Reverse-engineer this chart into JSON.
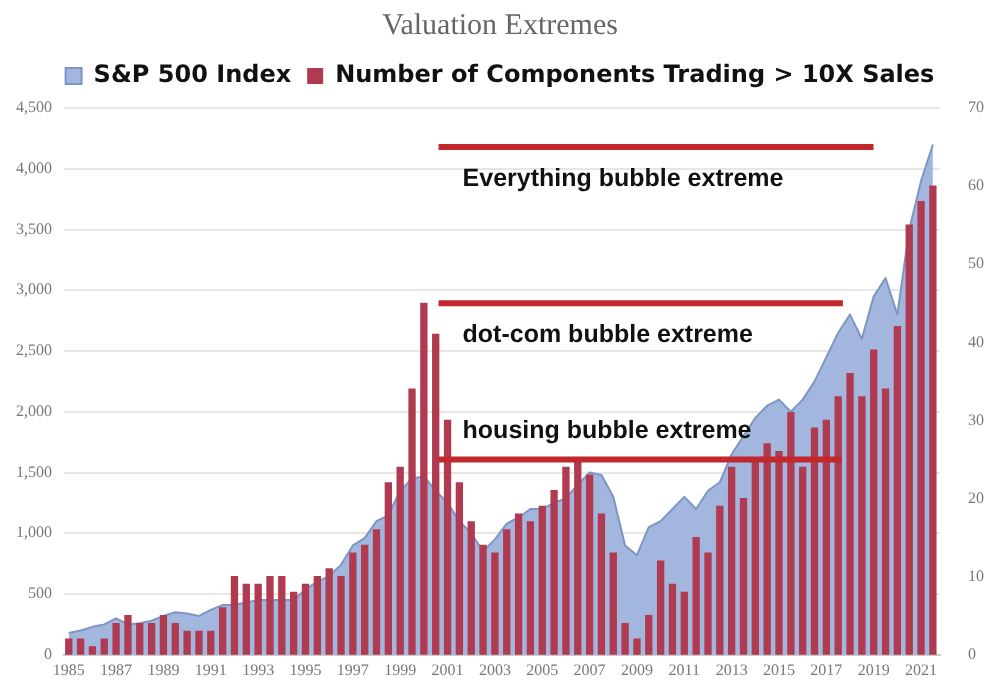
{
  "chart_data": {
    "type": "bar",
    "title": "Valuation Extremes",
    "x": [
      1985,
      1985.5,
      1986,
      1986.5,
      1987,
      1987.5,
      1988,
      1988.5,
      1989,
      1989.5,
      1990,
      1990.5,
      1991,
      1991.5,
      1992,
      1992.5,
      1993,
      1993.5,
      1994,
      1994.5,
      1995,
      1995.5,
      1996,
      1996.5,
      1997,
      1997.5,
      1998,
      1998.5,
      1999,
      1999.5,
      2000,
      2000.5,
      2001,
      2001.5,
      2002,
      2002.5,
      2003,
      2003.5,
      2004,
      2004.5,
      2005,
      2005.5,
      2006,
      2006.5,
      2007,
      2007.5,
      2008,
      2008.5,
      2009,
      2009.5,
      2010,
      2010.5,
      2011,
      2011.5,
      2012,
      2012.5,
      2013,
      2013.5,
      2014,
      2014.5,
      2015,
      2015.5,
      2016,
      2016.5,
      2017,
      2017.5,
      2018,
      2018.5,
      2019,
      2019.5,
      2020,
      2020.5,
      2021,
      2021.5
    ],
    "series": [
      {
        "name": "S&P 500 Index",
        "type": "area",
        "color": "#a3b6de",
        "values": [
          180,
          200,
          230,
          250,
          300,
          250,
          260,
          280,
          320,
          350,
          340,
          320,
          370,
          410,
          410,
          430,
          450,
          450,
          450,
          450,
          540,
          600,
          650,
          740,
          900,
          960,
          1100,
          1150,
          1350,
          1450,
          1470,
          1350,
          1250,
          1100,
          1000,
          850,
          950,
          1080,
          1130,
          1200,
          1200,
          1250,
          1290,
          1400,
          1500,
          1480,
          1300,
          900,
          820,
          1050,
          1100,
          1200,
          1300,
          1200,
          1350,
          1420,
          1650,
          1800,
          1950,
          2050,
          2100,
          2000,
          2100,
          2250,
          2450,
          2650,
          2800,
          2600,
          2950,
          3100,
          2800,
          3500,
          3900,
          4200
        ]
      },
      {
        "name": "Number of Components Trading > 10X Sales",
        "axis": "y2",
        "color": "#b03a50",
        "values": [
          2,
          2,
          1,
          2,
          4,
          5,
          4,
          4,
          5,
          4,
          3,
          3,
          3,
          6,
          10,
          9,
          9,
          10,
          10,
          8,
          9,
          10,
          11,
          10,
          13,
          14,
          16,
          22,
          24,
          34,
          45,
          41,
          30,
          22,
          17,
          14,
          13,
          16,
          18,
          17,
          19,
          21,
          24,
          25,
          23,
          18,
          13,
          4,
          2,
          5,
          12,
          9,
          8,
          15,
          13,
          19,
          24,
          20,
          25,
          27,
          26,
          31,
          24,
          29,
          30,
          33,
          36,
          33,
          39,
          34,
          42,
          55,
          58,
          60
        ]
      }
    ],
    "xlim": [
      1984.8,
      2021.8
    ],
    "xticks": [
      1985,
      1987,
      1989,
      1991,
      1993,
      1995,
      1997,
      1999,
      2001,
      2003,
      2005,
      2007,
      2009,
      2011,
      2013,
      2015,
      2017,
      2019,
      2021
    ],
    "ylim": [
      0,
      4500
    ],
    "yticks": [
      {
        "value": 0,
        "label": "0"
      },
      {
        "value": 500,
        "label": "500"
      },
      {
        "value": 1000,
        "label": "1,000"
      },
      {
        "value": 1500,
        "label": "1,500"
      },
      {
        "value": 2000,
        "label": "2,000"
      },
      {
        "value": 2500,
        "label": "2,500"
      },
      {
        "value": 3000,
        "label": "3,000"
      },
      {
        "value": 3500,
        "label": "3,500"
      },
      {
        "value": 4000,
        "label": "4,000"
      },
      {
        "value": 4500,
        "label": "4,500"
      }
    ],
    "y2lim": [
      0,
      70
    ],
    "y2ticks": [
      0,
      10,
      20,
      30,
      40,
      50,
      60,
      70
    ],
    "grid": "y",
    "legend": "top",
    "ref_lines": [
      {
        "axis": "y2",
        "value": 65,
        "label": "Everything bubble extreme",
        "color": "#c0282d"
      },
      {
        "axis": "y2",
        "value": 45,
        "label": "dot-com bubble extreme",
        "color": "#c0282d"
      },
      {
        "axis": "y2",
        "value": 25,
        "label": "housing bubble extreme",
        "color": "#c0282d"
      }
    ]
  }
}
